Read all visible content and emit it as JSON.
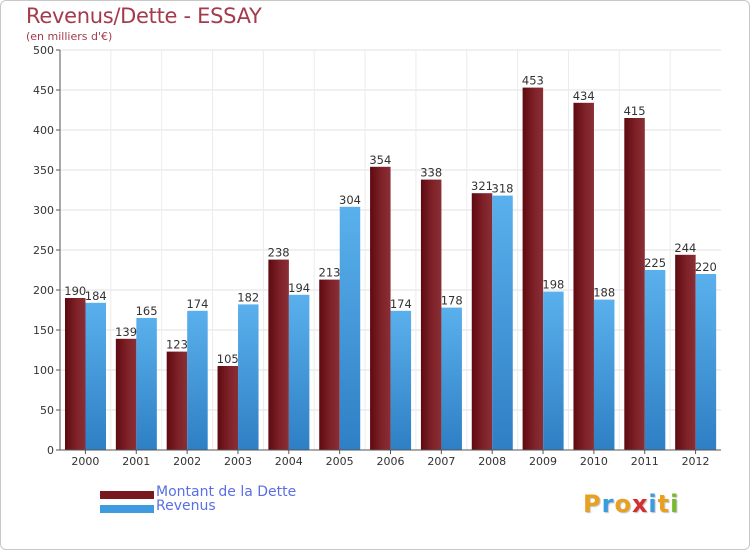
{
  "title": "Revenus/Dette - ESSAY",
  "subtitle": "(en milliers d'€)",
  "colors": {
    "dette": "#7a1820",
    "revenus": "#3f9be0",
    "title": "#a43a4c",
    "legend_text": "#5a6ee6"
  },
  "legend": {
    "dette_label": "Montant de la Dette",
    "revenus_label": "Revenus"
  },
  "logo": {
    "letters": [
      "P",
      "r",
      "o",
      "x",
      "i",
      "t",
      "i"
    ],
    "colors": [
      "#e8a020",
      "#3a9be0",
      "#e8a020",
      "#d23030",
      "#3a9be0",
      "#e8a020",
      "#7ab833"
    ]
  },
  "chart_data": {
    "type": "bar",
    "title": "Revenus/Dette - ESSAY",
    "subtitle": "(en milliers d'€)",
    "categories": [
      "2000",
      "2001",
      "2002",
      "2003",
      "2004",
      "2005",
      "2006",
      "2007",
      "2008",
      "2009",
      "2010",
      "2011",
      "2012"
    ],
    "series": [
      {
        "name": "Montant de la Dette",
        "values": [
          190,
          139,
          123,
          105,
          238,
          213,
          354,
          338,
          321,
          453,
          434,
          415,
          244
        ]
      },
      {
        "name": "Revenus",
        "values": [
          184,
          165,
          174,
          182,
          194,
          304,
          174,
          178,
          318,
          198,
          188,
          225,
          220
        ]
      }
    ],
    "ylim": [
      0,
      500
    ],
    "yticks": [
      0,
      50,
      100,
      150,
      200,
      250,
      300,
      350,
      400,
      450,
      500
    ],
    "grid": true,
    "legend_position": "bottom-left",
    "data_labels": true
  }
}
